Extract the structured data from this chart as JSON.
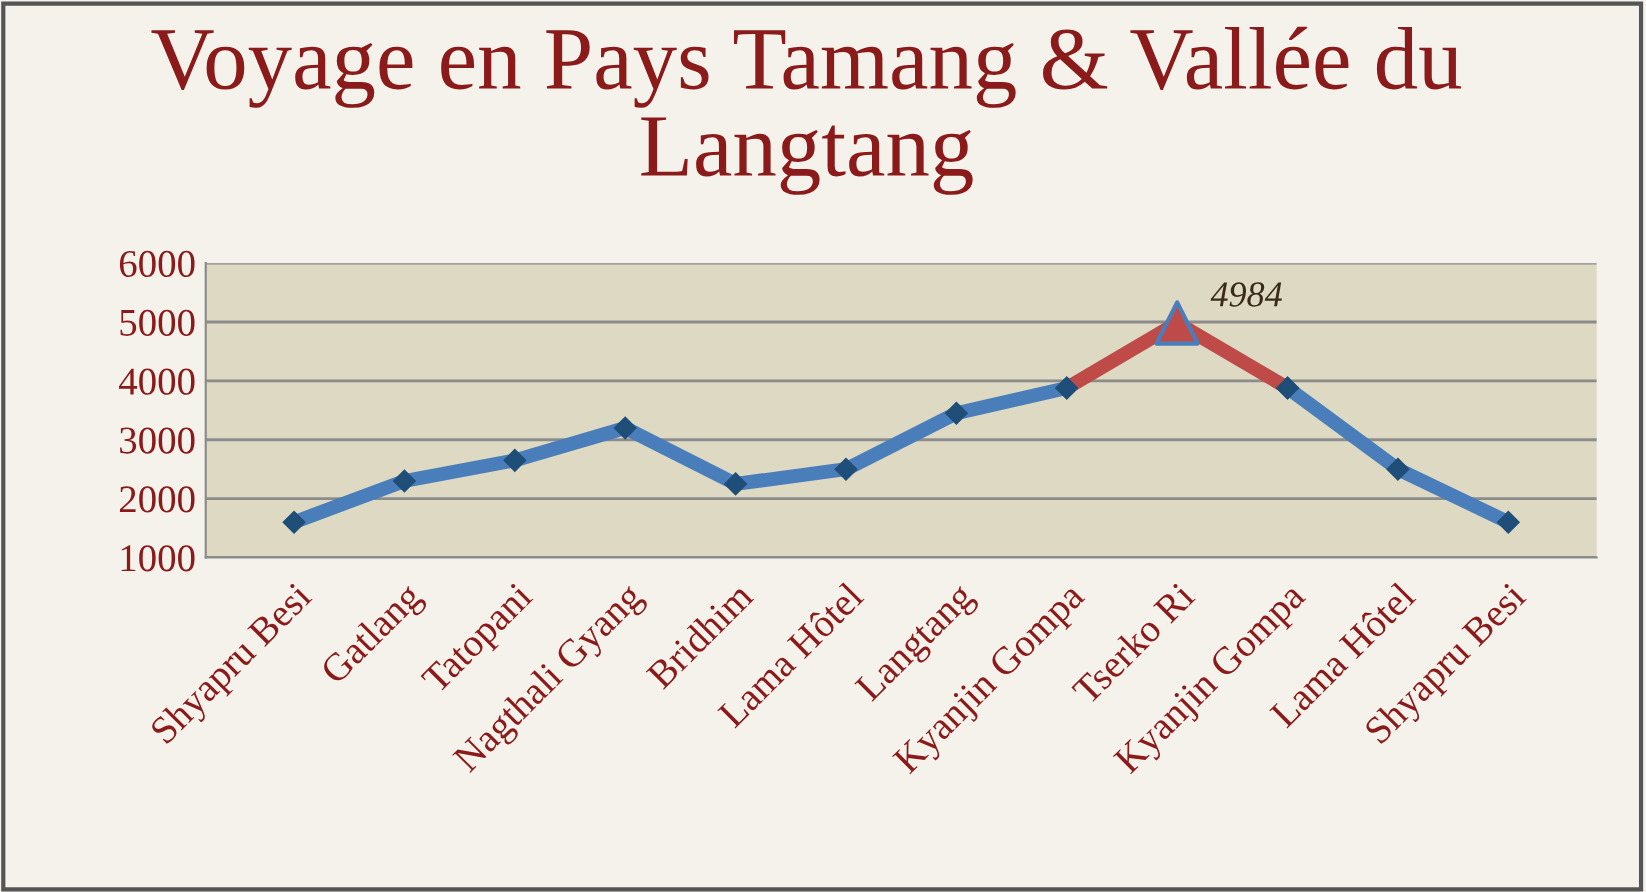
{
  "chart_data": {
    "type": "line",
    "title": "Voyage en Pays Tamang & Vallée du Langtang",
    "categories": [
      "Shyapru Besi",
      "Gatlang",
      "Tatopani",
      "Nagthali Gyang",
      "Bridhim",
      "Lama Hôtel",
      "Langtang",
      "Kyanjin Gompa",
      "Tserko Ri",
      "Kyanjin Gompa",
      "Lama Hôtel",
      "Shyapru Besi"
    ],
    "series": [
      {
        "color": "#4a7ebb",
        "marker": "diamond",
        "values": [
          1600,
          2300,
          2650,
          3200,
          2250,
          2500,
          3450,
          3880,
          null,
          3880,
          2500,
          1600
        ]
      },
      {
        "color": "#be4b48",
        "marker": "diamond",
        "values": [
          null,
          null,
          null,
          null,
          null,
          null,
          null,
          3880,
          4984,
          3880,
          null,
          null
        ]
      },
      {
        "type": "scatter",
        "color": "#be4b48",
        "marker": "triangle",
        "values": [
          null,
          null,
          null,
          null,
          null,
          null,
          null,
          null,
          4984,
          null,
          null,
          null
        ],
        "value_labels": [
          null,
          null,
          null,
          null,
          null,
          null,
          null,
          null,
          "4984",
          null,
          null,
          null
        ]
      }
    ],
    "ylim": [
      1000,
      6000
    ],
    "yticks": [
      1000,
      2000,
      3000,
      4000,
      5000,
      6000
    ],
    "grid": "y",
    "legend": false
  }
}
